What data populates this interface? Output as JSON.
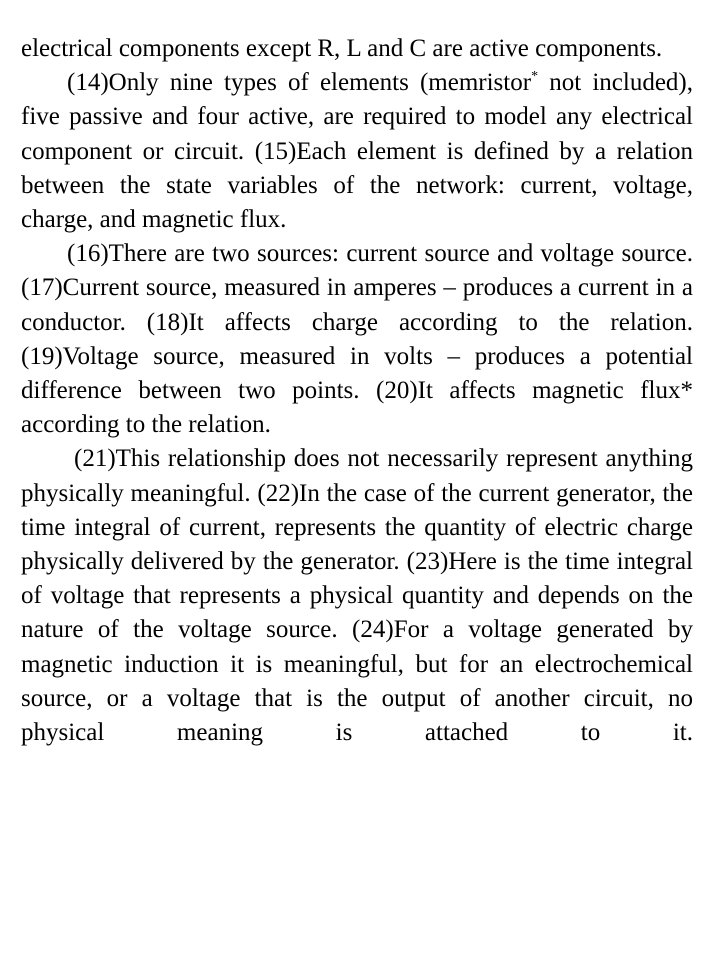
{
  "paragraphs": {
    "p1": {
      "text": "electrical components except R, L and C are active components."
    },
    "p2": {
      "before_sup": "(14)Only nine types of elements (memristor",
      "sup": "*",
      "after_sup": " not included), five passive and four active, are required to model any electrical component or circuit. (15)Each element is defined by a relation between the state variables of the network: current, voltage, charge, and magnetic flux."
    },
    "p3": {
      "text": "(16)There are two sources: current source and voltage source. (17)Current source, measured in amperes – produces a current in a conductor. (18)It affects charge according to the relation. (19)Voltage source, measured in volts – produces a potential difference between two points. (20)It affects magnetic flux* according to the relation."
    },
    "p4": {
      "text": "(21)This relationship does not necessarily represent anything physically meaningful. (22)In the case of the current generator, the time integral of current, represents the quantity of electric charge physically delivered by the generator. (23)Here is the time integral of voltage that represents a physical quantity and depends on the nature of the voltage source. (24)For a voltage generated by magnetic induction it is meaningful, but for an electrochemical source, or a voltage that is the output of another circuit, no physical meaning is attached to it."
    }
  }
}
